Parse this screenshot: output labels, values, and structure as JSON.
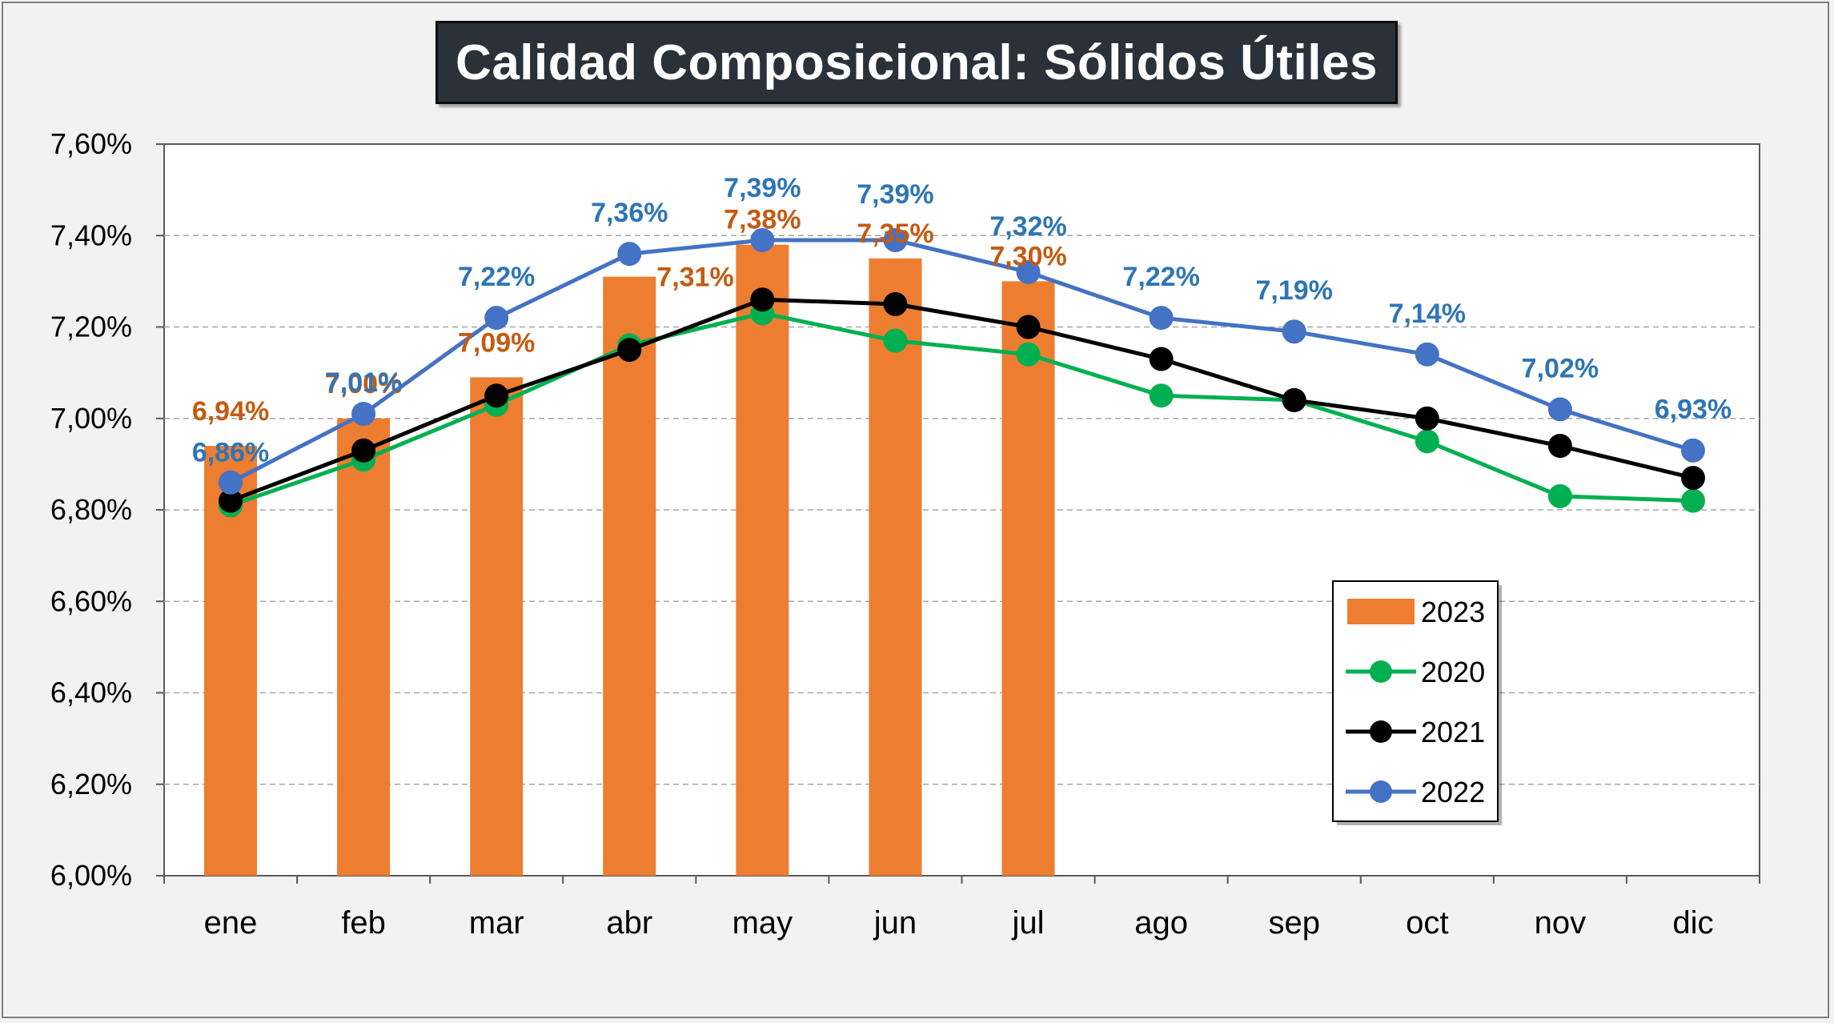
{
  "chart_data": {
    "type": "bar",
    "title": "Calidad Composicional: Sólidos Útiles",
    "categories": [
      "ene",
      "feb",
      "mar",
      "abr",
      "may",
      "jun",
      "jul",
      "ago",
      "sep",
      "oct",
      "nov",
      "dic"
    ],
    "ylim": [
      6.0,
      7.6
    ],
    "yticks": [
      "6,00%",
      "6,20%",
      "6,40%",
      "6,60%",
      "6,80%",
      "7,00%",
      "7,20%",
      "7,40%",
      "7,60%"
    ],
    "ytick_values": [
      6.0,
      6.2,
      6.4,
      6.6,
      6.8,
      7.0,
      7.2,
      7.4,
      7.6
    ],
    "grid": "horizontal dashed",
    "legend_position": "bottom-right",
    "series": [
      {
        "name": "2023",
        "type": "bar",
        "color": "#ed7d31",
        "label_color": "#c55a11",
        "values": [
          6.94,
          7.0,
          7.09,
          7.31,
          7.38,
          7.35,
          7.3,
          null,
          null,
          null,
          null,
          null
        ],
        "labels": [
          "6,94%",
          "7,00%",
          "7,09%",
          "7,31%",
          "7,38%",
          "7,35%",
          "7,30%",
          "",
          "",
          "",
          "",
          ""
        ]
      },
      {
        "name": "2020",
        "type": "line",
        "color": "#00b050",
        "values": [
          6.81,
          6.91,
          7.03,
          7.16,
          7.23,
          7.17,
          7.14,
          7.05,
          7.04,
          6.95,
          6.83,
          6.82
        ]
      },
      {
        "name": "2021",
        "type": "line",
        "color": "#000000",
        "values": [
          6.82,
          6.93,
          7.05,
          7.15,
          7.26,
          7.25,
          7.2,
          7.13,
          7.04,
          7.0,
          6.94,
          6.87
        ]
      },
      {
        "name": "2022",
        "type": "line",
        "color": "#4472c4",
        "label_color": "#2e75b6",
        "values": [
          6.86,
          7.01,
          7.22,
          7.36,
          7.39,
          7.39,
          7.32,
          7.22,
          7.19,
          7.14,
          7.02,
          6.93
        ],
        "labels": [
          "6,86%",
          "7,01%",
          "7,22%",
          "7,36%",
          "7,39%",
          "7,39%",
          "7,32%",
          "7,22%",
          "7,19%",
          "7,14%",
          "7,02%",
          "6,93%"
        ]
      }
    ]
  }
}
